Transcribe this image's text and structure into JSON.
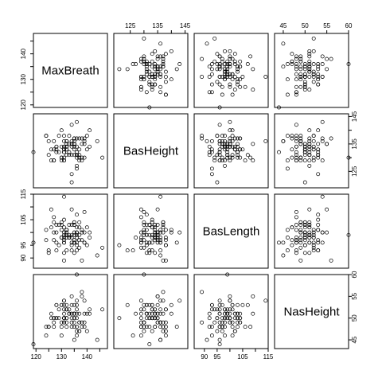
{
  "chart_data": {
    "type": "scatter",
    "title": "",
    "variables": [
      "MaxBreath",
      "BasHeight",
      "BasLength",
      "NasHeight"
    ],
    "ranges": {
      "MaxBreath": [
        119,
        148
      ],
      "BasHeight": [
        119,
        146
      ],
      "BasLength": [
        86,
        115
      ],
      "NasHeight": [
        43,
        60
      ]
    },
    "ticks": {
      "MaxBreath": [
        120,
        125,
        130,
        135,
        140,
        145
      ],
      "BasHeight": [
        125,
        130,
        135,
        140,
        145
      ],
      "BasLength": [
        90,
        95,
        100,
        105,
        110,
        115
      ],
      "NasHeight": [
        45,
        50,
        55,
        60
      ]
    },
    "tick_labels": {
      "MaxBreath": [
        "120",
        "130",
        "140"
      ],
      "BasHeight": [
        "125",
        "135",
        "145"
      ],
      "BasLength": [
        "90",
        "95",
        "105",
        "115"
      ],
      "NasHeight": [
        "45",
        "50",
        "55",
        "60"
      ]
    },
    "observations": {
      "MaxBreath": [
        131,
        125,
        131,
        119,
        136,
        138,
        139,
        125,
        131,
        134,
        129,
        134,
        126,
        132,
        141,
        131,
        135,
        132,
        139,
        132,
        126,
        135,
        134,
        128,
        130,
        138,
        128,
        127,
        131,
        124,
        124,
        133,
        135,
        140,
        135,
        137,
        130,
        136,
        137,
        132,
        137,
        135,
        136,
        138,
        136,
        131,
        132,
        139,
        135,
        136,
        130,
        140,
        137,
        135,
        131,
        130,
        132,
        134,
        133,
        131,
        134,
        129,
        128,
        131,
        135,
        137,
        134,
        134,
        128,
        136,
        127,
        136,
        141,
        131,
        139,
        144,
        127,
        136,
        133,
        138,
        146,
        131,
        135,
        136,
        132,
        127,
        132,
        133,
        135,
        130
      ],
      "BasHeight": [
        138,
        131,
        132,
        132,
        143,
        137,
        130,
        136,
        134,
        134,
        138,
        121,
        129,
        136,
        140,
        134,
        137,
        133,
        136,
        131,
        133,
        135,
        124,
        134,
        130,
        135,
        132,
        129,
        136,
        138,
        138,
        138,
        135,
        133,
        136,
        129,
        130,
        127,
        131,
        134,
        137,
        135,
        132,
        130,
        134,
        132,
        135,
        137,
        134,
        131,
        140,
        138,
        133,
        137,
        129,
        134,
        136,
        142,
        131,
        133,
        136,
        132,
        133,
        129,
        133,
        130,
        135,
        131,
        134,
        126,
        129,
        137,
        134,
        130,
        135,
        136,
        133,
        131,
        135,
        129,
        130,
        133,
        131,
        130,
        134,
        136,
        133,
        132,
        135,
        129
      ],
      "BasLength": [
        89,
        92,
        99,
        96,
        100,
        89,
        108,
        93,
        102,
        99,
        95,
        95,
        109,
        100,
        100,
        97,
        103,
        93,
        96,
        101,
        102,
        103,
        93,
        103,
        104,
        100,
        93,
        106,
        114,
        101,
        97,
        98,
        100,
        102,
        96,
        94,
        103,
        98,
        99,
        98,
        104,
        97,
        96,
        101,
        100,
        92,
        99,
        100,
        92,
        95,
        101,
        95,
        102,
        104,
        96,
        98,
        101,
        96,
        99,
        105,
        98,
        103,
        96,
        96,
        104,
        97,
        109,
        103,
        100,
        93,
        100,
        102,
        98,
        100,
        96,
        91,
        104,
        107,
        98,
        97,
        94,
        98,
        96,
        99,
        101,
        97,
        99,
        103,
        99,
        98
      ],
      "NasHeight": [
        49,
        48,
        50,
        44,
        54,
        56,
        48,
        48,
        51,
        51,
        52,
        50,
        51,
        49,
        51,
        50,
        48,
        52,
        51,
        53,
        50,
        49,
        53,
        50,
        49,
        55,
        53,
        48,
        54,
        46,
        48,
        52,
        50,
        51,
        45,
        49,
        53,
        51,
        51,
        50,
        49,
        53,
        48,
        49,
        52,
        50,
        50,
        54,
        51,
        50,
        53,
        47,
        47,
        51,
        54,
        48,
        52,
        48,
        51,
        53,
        49,
        50,
        53,
        52,
        50,
        47,
        55,
        51,
        50,
        46,
        50,
        47,
        52,
        49,
        49,
        45,
        50,
        53,
        51,
        48,
        52,
        50,
        51,
        60,
        48,
        49,
        52,
        51,
        51,
        46
      ]
    }
  }
}
